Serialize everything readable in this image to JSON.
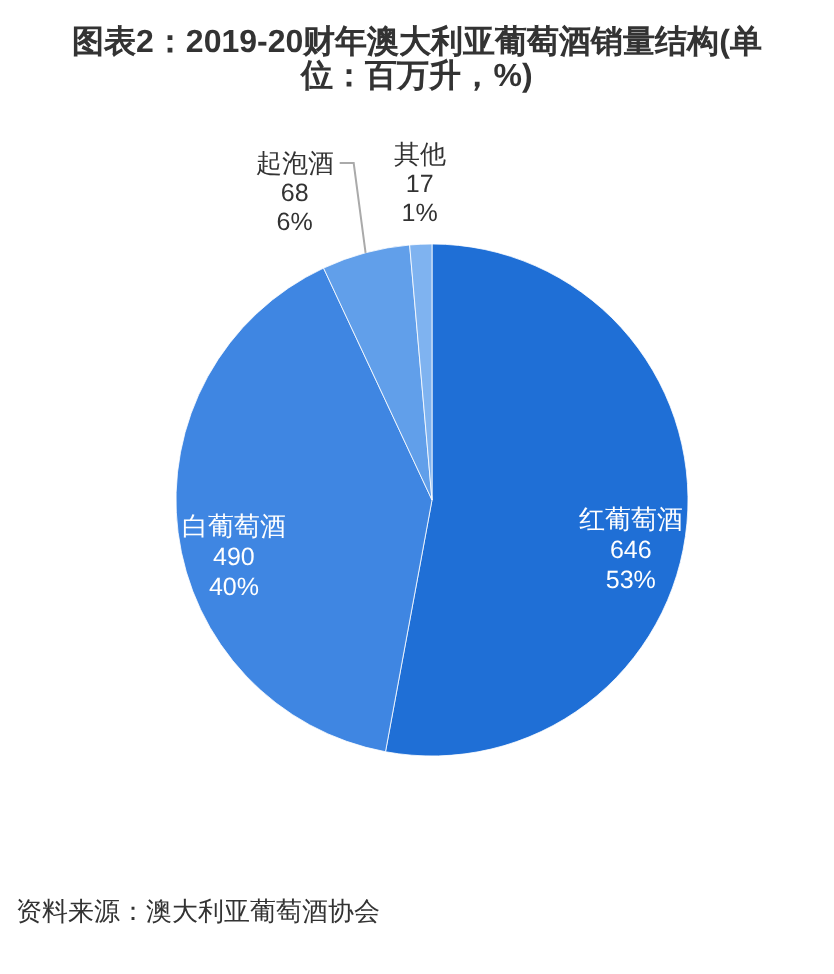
{
  "chart_data": {
    "type": "pie",
    "title": "图表2：2019-20财年澳大利亚葡萄酒销量结构(单位：百万升，%)",
    "categories": [
      "红葡萄酒",
      "白葡萄酒",
      "起泡酒",
      "其他"
    ],
    "values": [
      646,
      490,
      68,
      17
    ],
    "value_labels": [
      "646\n53%",
      "490\n40%",
      "68\n6%",
      "17\n1%"
    ],
    "colors": [
      "#1f6fd6",
      "#3f86e2",
      "#619fea",
      "#7fb3f0"
    ],
    "annotations": [
      "资料来源：澳大利亚葡萄酒协会"
    ]
  }
}
